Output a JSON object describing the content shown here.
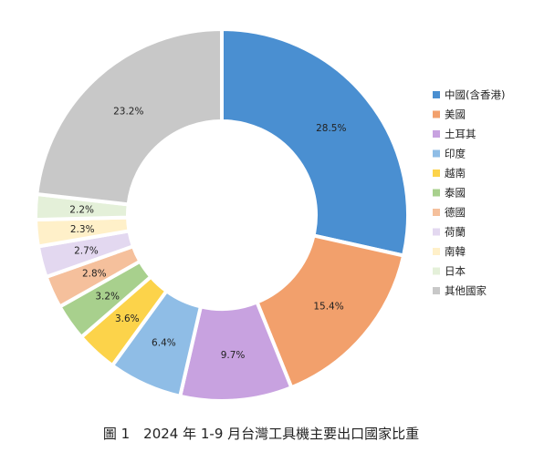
{
  "chart_data": {
    "type": "pie",
    "title": "",
    "labels": [
      "中國(含香港)",
      "美國",
      "土耳其",
      "印度",
      "越南",
      "泰國",
      "德國",
      "荷蘭",
      "南韓",
      "日本",
      "其他國家"
    ],
    "values": [
      28.5,
      15.4,
      9.7,
      6.4,
      3.6,
      3.2,
      2.8,
      2.7,
      2.3,
      2.2,
      23.2
    ],
    "data_labels": [
      "28.5%",
      "15.4%",
      "9.7%",
      "6.4%",
      "3.6%",
      "3.2%",
      "2.8%",
      "2.7%",
      "2.3%",
      "2.2%",
      "23.2%"
    ],
    "colors": [
      "#4a8fd1",
      "#f2a06c",
      "#c8a2e0",
      "#8fbde6",
      "#fcd34a",
      "#a8d08d",
      "#f5c09c",
      "#e3d8f0",
      "#fff0c9",
      "#e4f0d9",
      "#c8c8c8"
    ],
    "legend_position": "right",
    "donut": true
  },
  "caption": "圖 1　2024 年 1-9 月台灣工具機主要出口國家比重"
}
